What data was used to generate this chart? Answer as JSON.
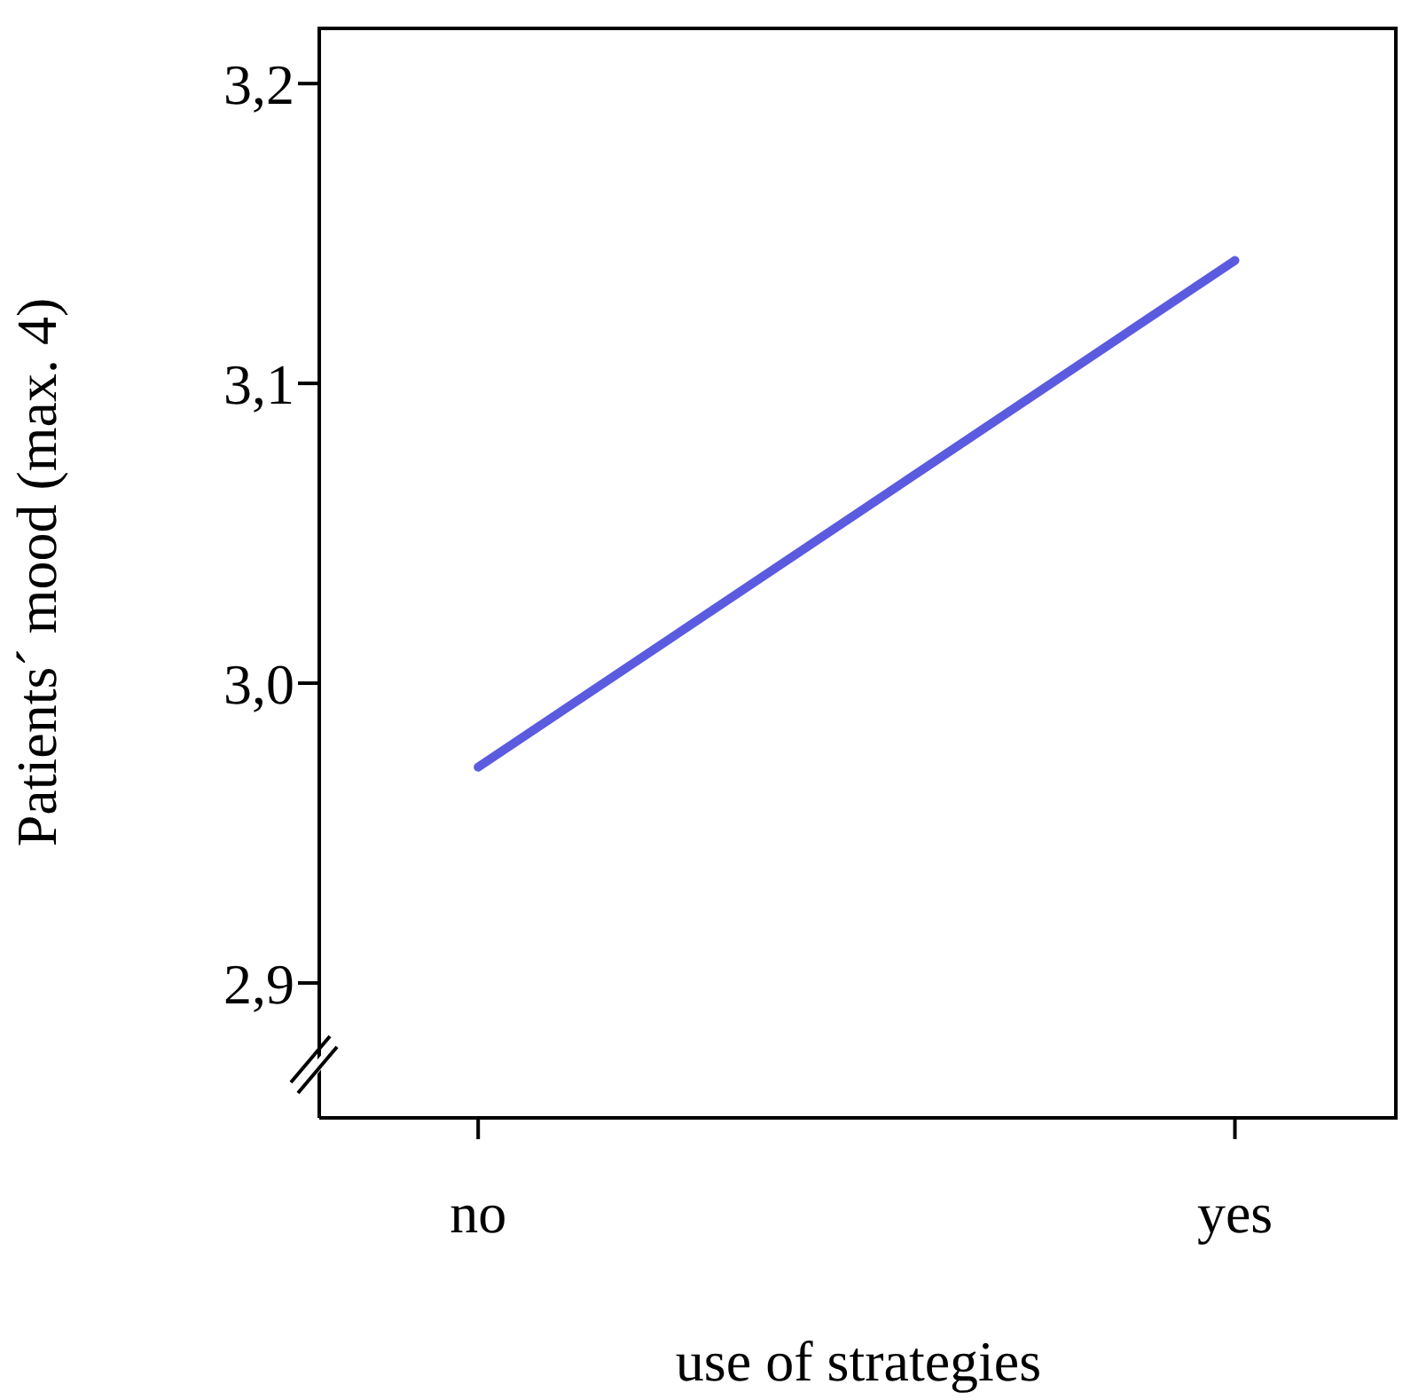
{
  "chart_data": {
    "type": "line",
    "categories": [
      "no",
      "yes"
    ],
    "xlabel": "use of strategies",
    "ylabel": "Patients´ mood (max. 4)",
    "series": [
      {
        "color": "#5b5be0",
        "values": [
          2.972,
          3.141
        ]
      }
    ],
    "ylim": [
      2.855,
      3.219
    ],
    "yticks": [
      {
        "value": 2.9,
        "label": "2,9"
      },
      {
        "value": 3.0,
        "label": "3,0"
      },
      {
        "value": 3.1,
        "label": "3,1"
      },
      {
        "value": 3.2,
        "label": "3,2"
      }
    ],
    "grid": false,
    "marker": "none",
    "line_style": "solid"
  }
}
